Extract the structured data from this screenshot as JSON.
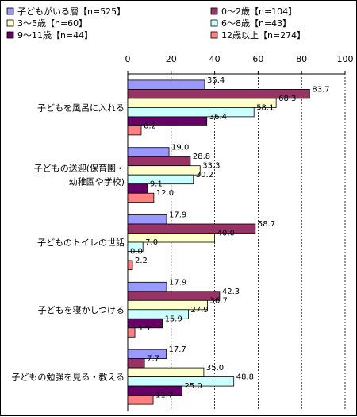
{
  "chart_data": {
    "type": "bar",
    "orientation": "horizontal",
    "xlim": [
      0,
      100
    ],
    "ticks": [
      0,
      20,
      40,
      60,
      80,
      100
    ],
    "grid": true,
    "legend_position": "top",
    "categories": [
      [
        "子どもを風呂に入れる"
      ],
      [
        "子どもの送迎(保育園・",
        "幼稚園や学校)"
      ],
      [
        "子どものトイレの世話"
      ],
      [
        "子どもを寝かしつける"
      ],
      [
        "子どもの勉強を見る・教える"
      ]
    ],
    "series": [
      {
        "name": "子どもがいる層【n=525】",
        "color": "#9999ff",
        "values": [
          35.4,
          19.0,
          17.9,
          17.9,
          17.7
        ]
      },
      {
        "name": "0～2歳【n=104】",
        "color": "#993366",
        "values": [
          83.7,
          28.8,
          58.7,
          42.3,
          7.7
        ]
      },
      {
        "name": "3～5歳【n=60】",
        "color": "#ffffcc",
        "values": [
          68.3,
          33.3,
          40.0,
          36.7,
          35.0
        ]
      },
      {
        "name": "6～8歳【n=43】",
        "color": "#ccffff",
        "values": [
          58.1,
          30.2,
          7.0,
          27.9,
          48.8
        ]
      },
      {
        "name": "9～11歳【n=44】",
        "color": "#660066",
        "values": [
          36.4,
          9.1,
          0.0,
          15.9,
          25.0
        ]
      },
      {
        "name": "12歳以上【n=274】",
        "color": "#ff8080",
        "values": [
          6.2,
          12.0,
          2.2,
          3.3,
          11.7
        ]
      }
    ]
  }
}
